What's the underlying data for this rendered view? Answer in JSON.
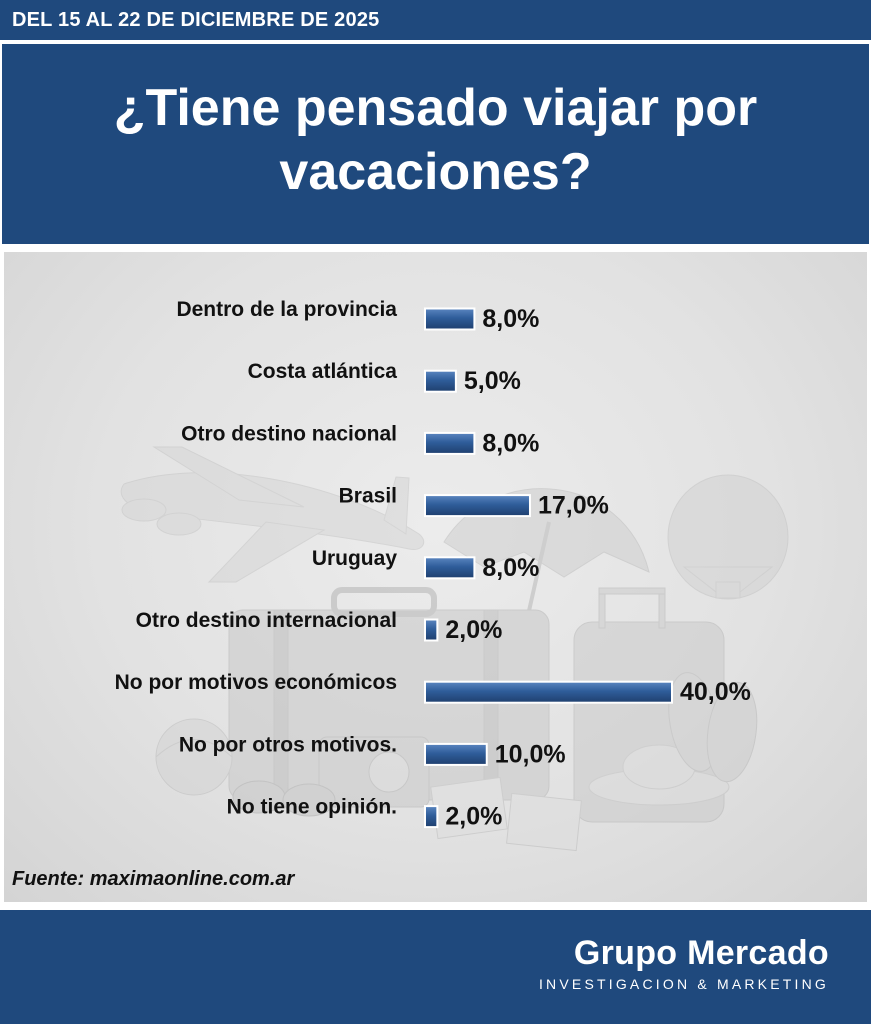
{
  "header": {
    "date_range": "DEL 15 AL 22 DE DICIEMBRE DE 2025"
  },
  "title": "¿Tiene pensado viajar por vacaciones?",
  "source": "Fuente: maximaonline.com.ar",
  "footer": {
    "brand": "Grupo Mercado",
    "tagline": "INVESTIGACION & MARKETING"
  },
  "colors": {
    "navy": "#1f497d",
    "bar": "#2f5d9a",
    "bar_dark": "#1f3f6e"
  },
  "chart_data": {
    "type": "bar",
    "orientation": "horizontal",
    "title": "¿Tiene pensado viajar por vacaciones?",
    "unit": "%",
    "categories": [
      "Dentro de la provincia",
      "Costa atlántica",
      "Otro destino nacional",
      "Brasil",
      "Uruguay",
      "Otro destino internacional",
      "No por motivos económicos",
      "No por otros motivos.",
      "No tiene opinión."
    ],
    "values": [
      8.0,
      5.0,
      8.0,
      17.0,
      8.0,
      2.0,
      40.0,
      10.0,
      2.0
    ],
    "value_labels": [
      "8,0%",
      "5,0%",
      "8,0%",
      "17,0%",
      "8,0%",
      "2,0%",
      "40,0%",
      "10,0%",
      "2,0%"
    ],
    "xlim": [
      0,
      40
    ],
    "grid": false,
    "legend": "none"
  }
}
